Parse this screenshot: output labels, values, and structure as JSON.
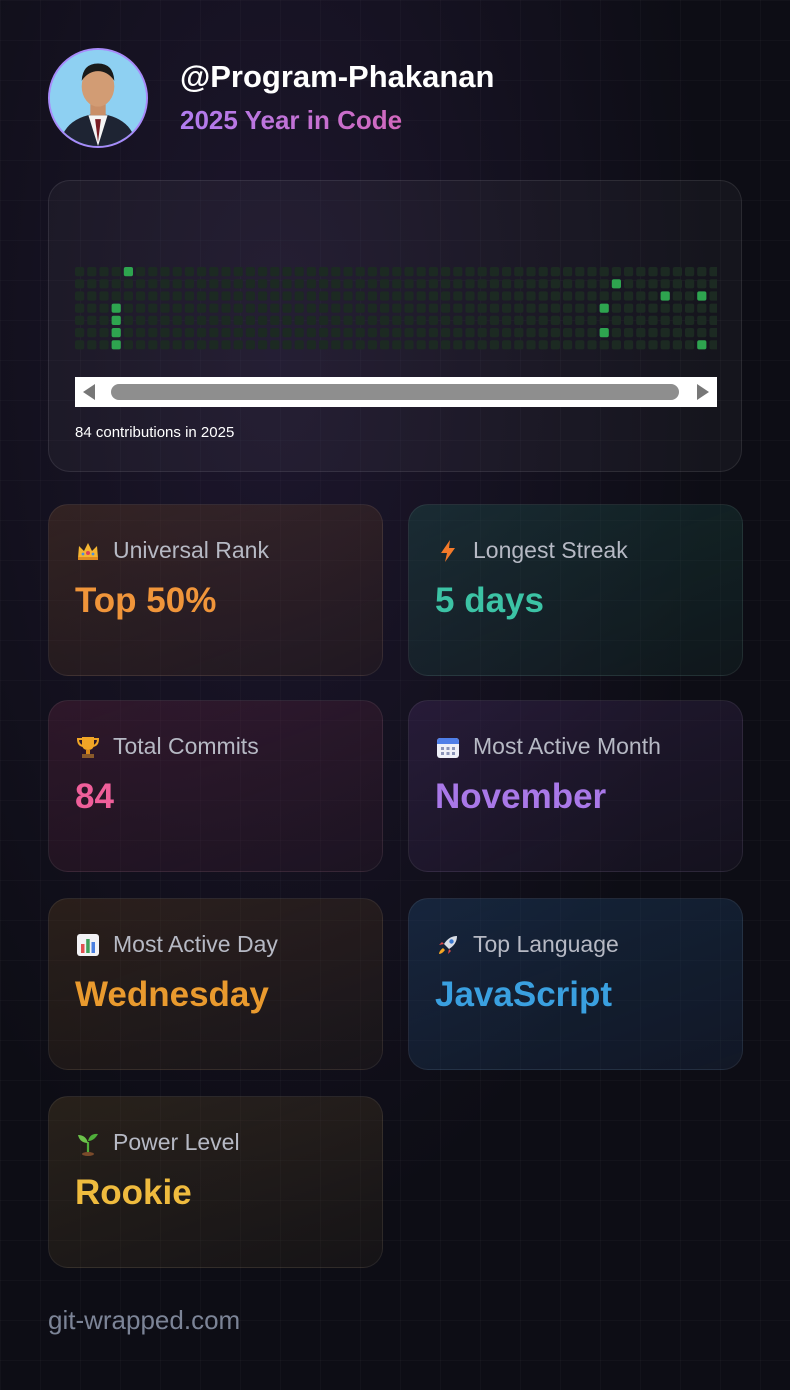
{
  "profile": {
    "username": "@Program-Phakanan",
    "subtitle": "2025 Year in Code",
    "avatar_icon": "profile-photo"
  },
  "contributions": {
    "caption": "84 contributions in 2025",
    "cell_empty_color": "#1c2a22",
    "cell_active_color": "#2ea44f",
    "weeks_visible": 53,
    "active_cells": [
      {
        "week": 4,
        "day": 0
      },
      {
        "week": 3,
        "day": 3
      },
      {
        "week": 3,
        "day": 4
      },
      {
        "week": 3,
        "day": 5
      },
      {
        "week": 3,
        "day": 6
      },
      {
        "week": 43,
        "day": 3
      },
      {
        "week": 43,
        "day": 5
      },
      {
        "week": 44,
        "day": 1
      },
      {
        "week": 48,
        "day": 2
      },
      {
        "week": 51,
        "day": 2
      },
      {
        "week": 51,
        "day": 6
      }
    ]
  },
  "stats": {
    "rank": {
      "label": "Universal Rank",
      "value": "Top 50%",
      "icon": "crown-icon",
      "color": "#f0953a"
    },
    "streak": {
      "label": "Longest Streak",
      "value": "5 days",
      "icon": "lightning-icon",
      "color": "#3cc3a5"
    },
    "commits": {
      "label": "Total Commits",
      "value": "84",
      "icon": "trophy-icon",
      "color": "#ef5f9a"
    },
    "month": {
      "label": "Most Active Month",
      "value": "November",
      "icon": "calendar-icon",
      "color": "#a978e8"
    },
    "day": {
      "label": "Most Active Day",
      "value": "Wednesday",
      "icon": "bar-chart-icon",
      "color": "#e99a2e"
    },
    "lang": {
      "label": "Top Language",
      "value": "JavaScript",
      "icon": "rocket-icon",
      "color": "#3aa0e0"
    },
    "power": {
      "label": "Power Level",
      "value": "Rookie",
      "icon": "seedling-icon",
      "color": "#efbb3e"
    }
  },
  "footer": {
    "site": "git-wrapped.com"
  }
}
